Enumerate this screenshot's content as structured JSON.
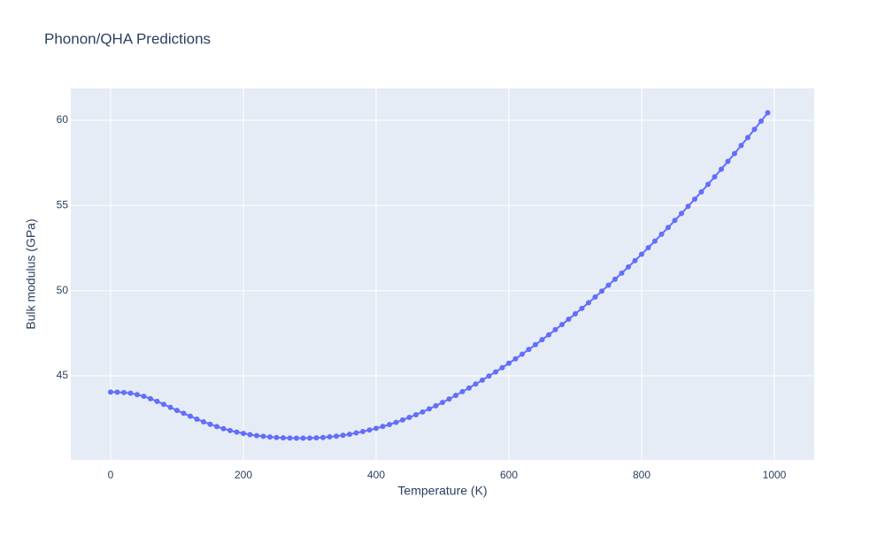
{
  "chart_data": {
    "type": "line",
    "title": "Phonon/QHA Predictions",
    "xlabel": "Temperature (K)",
    "ylabel": "Bulk modulus (GPa)",
    "x": [
      0,
      10,
      20,
      30,
      40,
      50,
      60,
      70,
      80,
      90,
      100,
      110,
      120,
      130,
      140,
      150,
      160,
      170,
      180,
      190,
      200,
      210,
      220,
      230,
      240,
      250,
      260,
      270,
      280,
      290,
      300,
      310,
      320,
      330,
      340,
      350,
      360,
      370,
      380,
      390,
      400,
      410,
      420,
      430,
      440,
      450,
      460,
      470,
      480,
      490,
      500,
      510,
      520,
      530,
      540,
      550,
      560,
      570,
      580,
      590,
      600,
      610,
      620,
      630,
      640,
      650,
      660,
      670,
      680,
      690,
      700,
      710,
      720,
      730,
      740,
      750,
      760,
      770,
      780,
      790,
      800,
      810,
      820,
      830,
      840,
      850,
      860,
      870,
      880,
      890,
      900,
      910,
      920,
      930,
      940,
      950,
      960,
      970,
      980,
      990
    ],
    "series": [
      {
        "name": "Bulk modulus",
        "color": "#636efa",
        "values": [
          44.05,
          44.04,
          44.02,
          43.98,
          43.9,
          43.8,
          43.66,
          43.5,
          43.33,
          43.15,
          42.97,
          42.8,
          42.63,
          42.46,
          42.3,
          42.16,
          42.02,
          41.9,
          41.79,
          41.7,
          41.62,
          41.55,
          41.49,
          41.45,
          41.41,
          41.38,
          41.36,
          41.35,
          41.34,
          41.34,
          41.35,
          41.36,
          41.38,
          41.42,
          41.46,
          41.51,
          41.57,
          41.65,
          41.73,
          41.82,
          41.92,
          42.03,
          42.14,
          42.27,
          42.41,
          42.56,
          42.72,
          42.88,
          43.06,
          43.24,
          43.44,
          43.64,
          43.85,
          44.07,
          44.29,
          44.52,
          44.75,
          44.99,
          45.23,
          45.48,
          45.74,
          46.0,
          46.27,
          46.55,
          46.83,
          47.12,
          47.41,
          47.71,
          48.01,
          48.32,
          48.64,
          48.96,
          49.29,
          49.63,
          49.97,
          50.32,
          50.67,
          51.03,
          51.39,
          51.76,
          52.14,
          52.52,
          52.91,
          53.31,
          53.71,
          54.12,
          54.53,
          54.95,
          55.37,
          55.8,
          56.24,
          56.68,
          57.13,
          57.59,
          58.05,
          58.52,
          58.99,
          59.47,
          59.95,
          60.44
        ]
      }
    ],
    "xlim": [
      -60,
      1060
    ],
    "xticks": [
      0,
      200,
      400,
      600,
      800,
      1000
    ],
    "ylim": [
      40.07,
      61.87
    ],
    "yticks": [
      45,
      50,
      55,
      60
    ],
    "grid": true
  }
}
